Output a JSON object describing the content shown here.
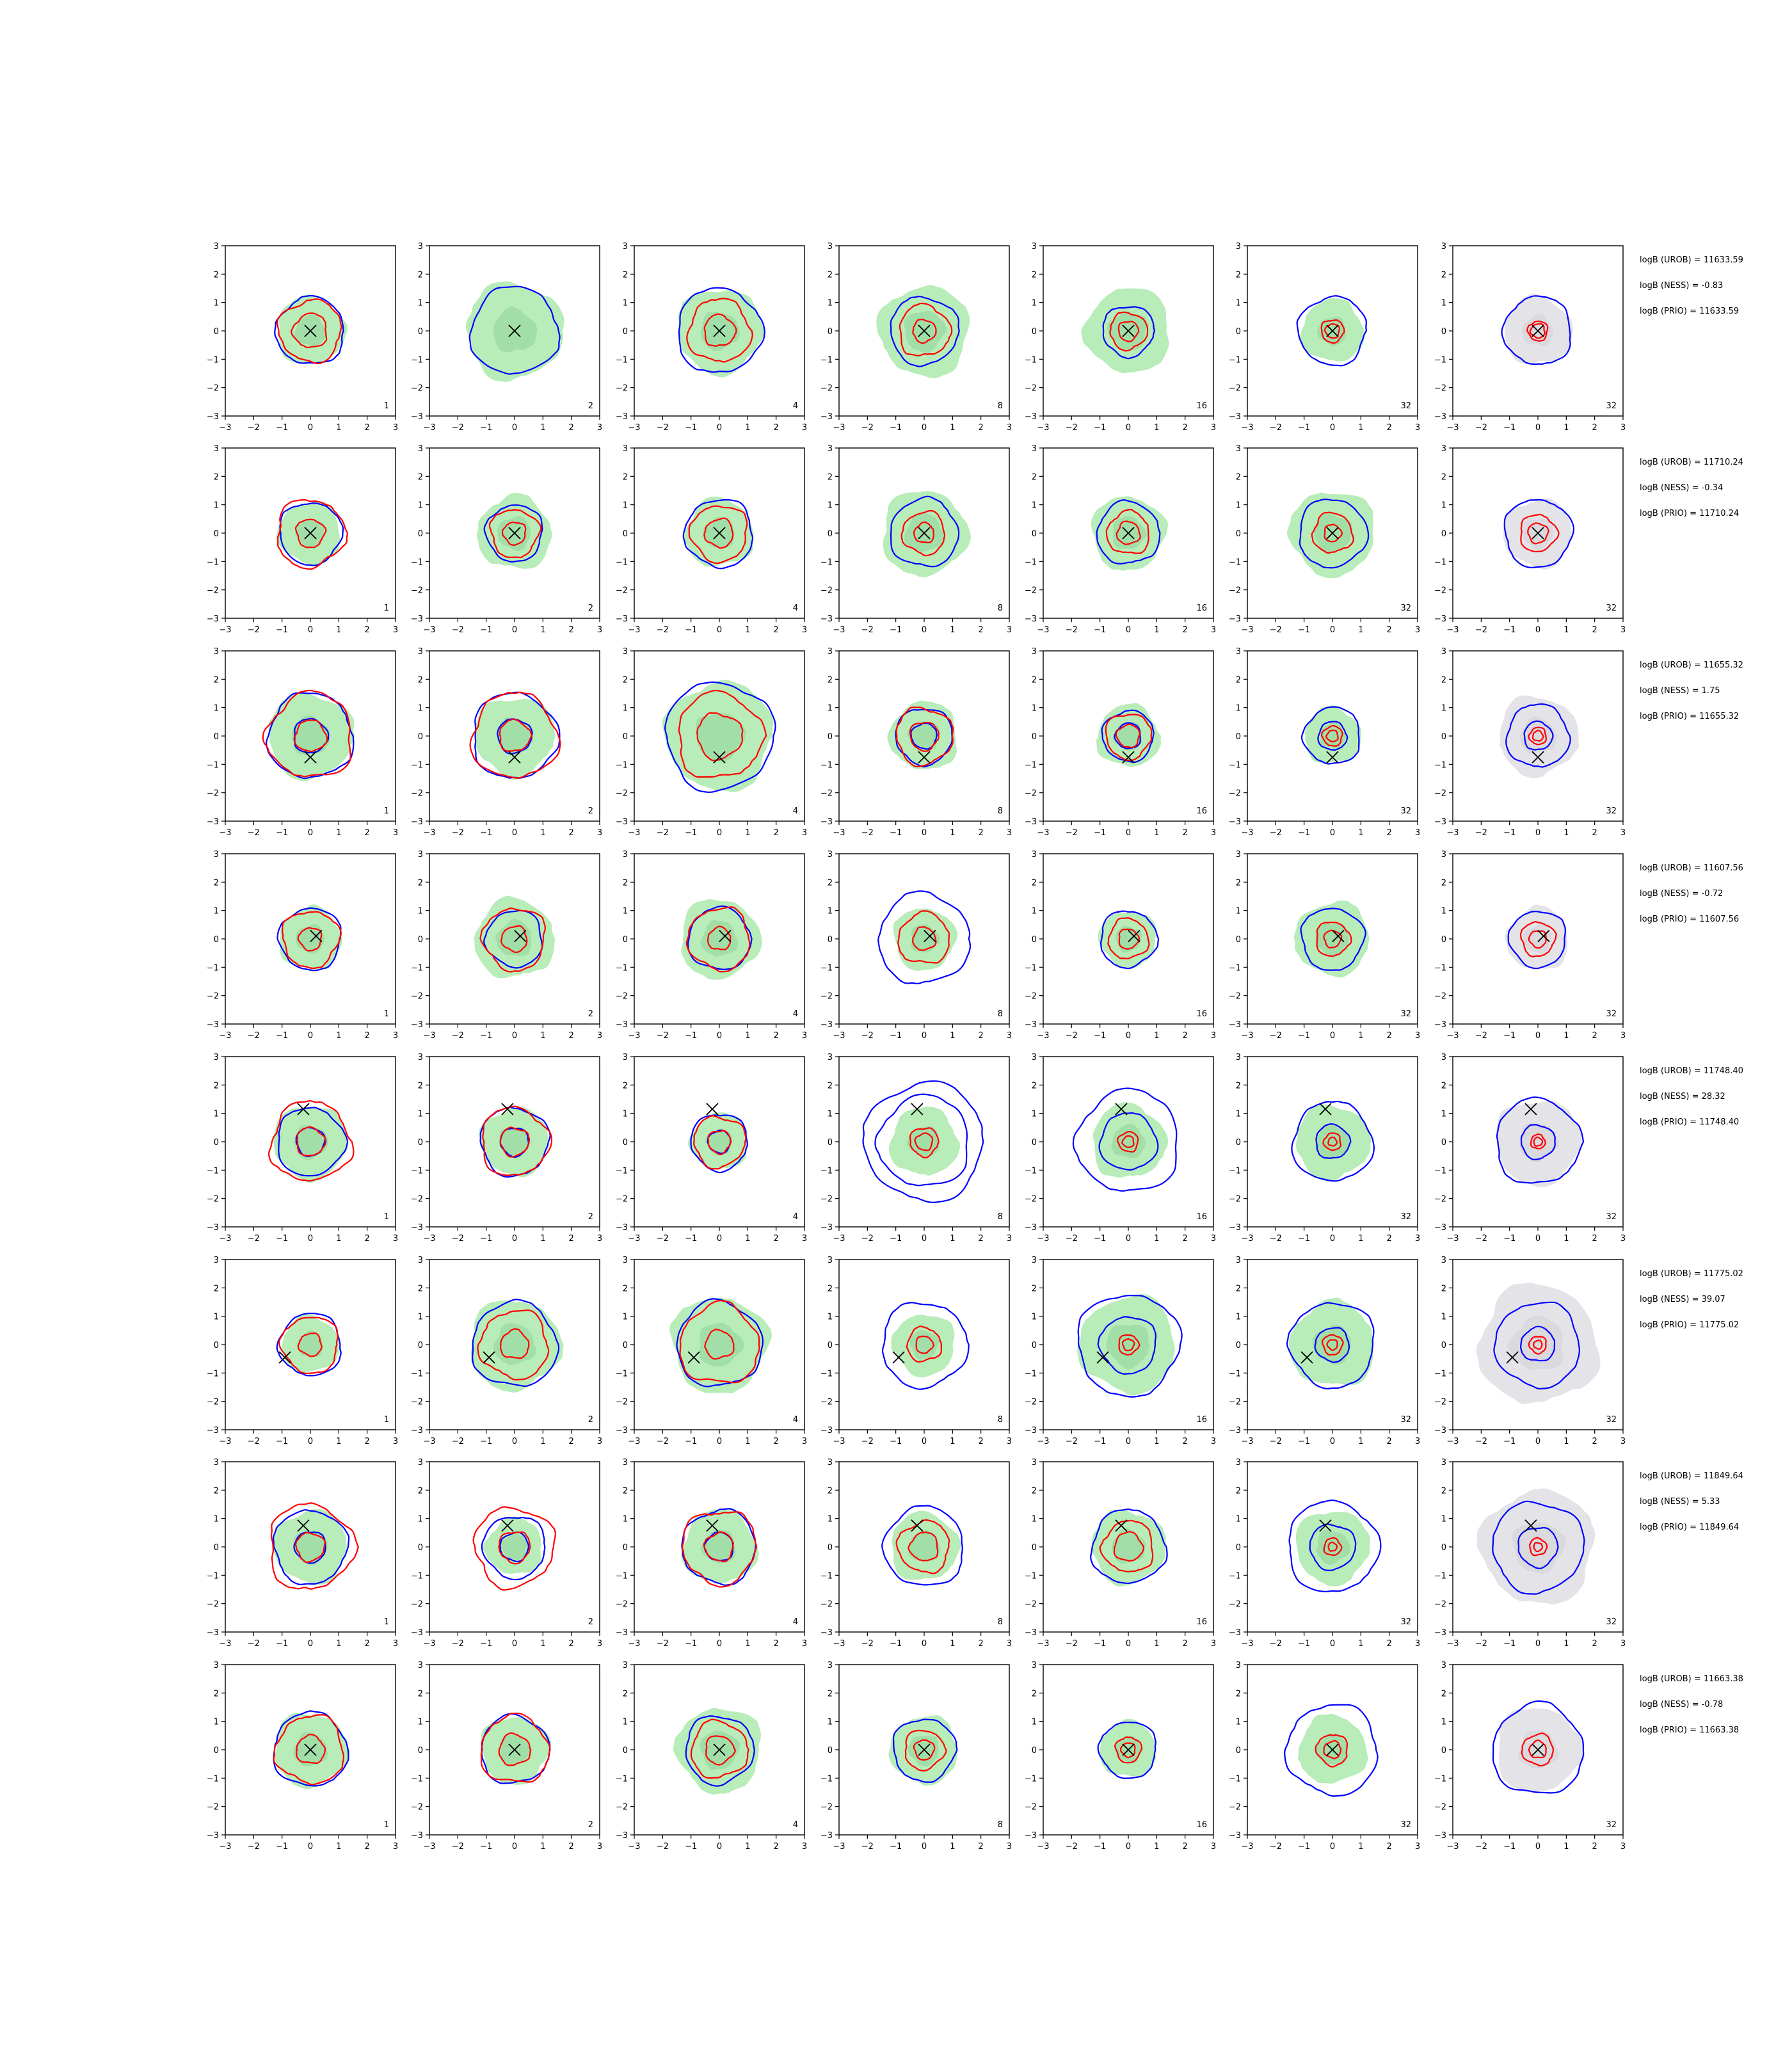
{
  "chart_data": {
    "type": "contour-grid",
    "description_axes": {
      "xlim": [
        -3,
        3
      ],
      "ylim": [
        -3,
        3
      ],
      "xticks": [
        "−3",
        "−2",
        "−1",
        "0",
        "1",
        "2",
        "3"
      ],
      "yticks": [
        "3",
        "2",
        "1",
        "0",
        "−1",
        "−2",
        "−3"
      ]
    },
    "colors": {
      "fill_green": "#b8ecb8",
      "fill_green_dark": "#8fd39a",
      "fill_gray": "#e4e4e8",
      "fill_gray_dark": "#cfcfd6",
      "contour_blue": "#0000ff",
      "contour_red": "#ff0000",
      "marker": "#000000"
    },
    "column_labels": [
      "1",
      "2",
      "4",
      "8",
      "16",
      "32",
      "32"
    ],
    "last_column_fill": "gray",
    "rows": [
      {
        "marker": [
          0.0,
          0.0
        ],
        "stats": [
          "logB (UROB) = 11633.59",
          "logB (NESS) = -0.83",
          "logB (PRIO) = 11633.59"
        ],
        "panels": [
          {
            "fill": 1.2,
            "blue": [
              1.2
            ],
            "red": [
              1.1,
              0.6
            ]
          },
          {
            "fill": 1.7,
            "blue": [
              1.55
            ],
            "red": []
          },
          {
            "fill": 1.5,
            "blue": [
              1.5
            ],
            "red": [
              1.1,
              0.55
            ]
          },
          {
            "fill": 1.6,
            "blue": [
              1.2
            ],
            "red": [
              0.9,
              0.4
            ]
          },
          {
            "fill": 1.5,
            "blue": [
              0.9
            ],
            "red": [
              0.65,
              0.35
            ]
          },
          {
            "fill": 1.1,
            "blue": [
              1.2
            ],
            "red": [
              0.4,
              0.25
            ]
          },
          {
            "fill": 1.2,
            "blue": [
              1.2
            ],
            "red": [
              0.35,
              0.25
            ]
          }
        ]
      },
      {
        "marker": [
          0.0,
          0.0
        ],
        "stats": [
          "logB (UROB) = 11710.24",
          "logB (NESS) = -0.34",
          "logB (PRIO) = 11710.24"
        ],
        "panels": [
          {
            "fill": 1.1,
            "blue": [
              1.1
            ],
            "red": [
              1.2,
              0.5
            ]
          },
          {
            "fill": 1.3,
            "blue": [
              1.0
            ],
            "red": [
              0.85,
              0.4
            ]
          },
          {
            "fill": 1.2,
            "blue": [
              1.2
            ],
            "red": [
              1.0,
              0.5
            ]
          },
          {
            "fill": 1.5,
            "blue": [
              1.2
            ],
            "red": [
              0.75,
              0.35
            ]
          },
          {
            "fill": 1.3,
            "blue": [
              1.1
            ],
            "red": [
              0.75,
              0.4
            ]
          },
          {
            "fill": 1.5,
            "blue": [
              1.2
            ],
            "red": [
              0.7,
              0.3
            ]
          },
          {
            "fill": 1.2,
            "blue": [
              1.2
            ],
            "red": [
              0.65,
              0.35
            ]
          }
        ]
      },
      {
        "marker": [
          0.0,
          -0.75
        ],
        "stats": [
          "logB (UROB) = 11655.32",
          "logB (NESS) = 1.75",
          "logB (PRIO) = 11655.32"
        ],
        "panels": [
          {
            "fill": 1.5,
            "blue": [
              1.5,
              0.6
            ],
            "red": [
              1.5,
              0.55
            ]
          },
          {
            "fill": 1.4,
            "blue": [
              1.5,
              0.6
            ],
            "red": [
              1.5,
              0.55
            ]
          },
          {
            "fill": 1.9,
            "blue": [
              1.9
            ],
            "red": [
              1.5,
              0.8
            ]
          },
          {
            "fill": 1.2,
            "blue": [
              1.0,
              0.45
            ],
            "red": [
              1.0,
              0.5
            ]
          },
          {
            "fill": 1.1,
            "blue": [
              0.9,
              0.45
            ],
            "red": [
              0.8,
              0.4
            ]
          },
          {
            "fill": 1.0,
            "blue": [
              1.0,
              0.5
            ],
            "red": [
              0.35,
              0.2
            ]
          },
          {
            "fill": 1.4,
            "blue": [
              1.1,
              0.5
            ],
            "red": [
              0.3,
              0.18
            ]
          }
        ]
      },
      {
        "marker": [
          0.2,
          0.1
        ],
        "stats": [
          "logB (UROB) = 11607.56",
          "logB (NESS) = -0.72",
          "logB (PRIO) = 11607.56"
        ],
        "panels": [
          {
            "fill": 1.1,
            "blue": [
              1.1
            ],
            "red": [
              1.0,
              0.4
            ]
          },
          {
            "fill": 1.4,
            "blue": [
              1.0
            ],
            "red": [
              1.1,
              0.45
            ]
          },
          {
            "fill": 1.4,
            "blue": [
              1.1
            ],
            "red": [
              1.1,
              0.4
            ]
          },
          {
            "fill": 1.1,
            "blue": [
              1.6
            ],
            "red": [
              0.9,
              0.4
            ]
          },
          {
            "fill": 1.0,
            "blue": [
              1.0
            ],
            "red": [
              0.7,
              0.35
            ]
          },
          {
            "fill": 1.3,
            "blue": [
              1.1
            ],
            "red": [
              0.6,
              0.3
            ]
          },
          {
            "fill": 1.1,
            "blue": [
              1.0
            ],
            "red": [
              0.6,
              0.3
            ]
          }
        ]
      },
      {
        "marker": [
          -0.25,
          1.15
        ],
        "stats": [
          "logB (UROB) = 11748.40",
          "logB (NESS) = 28.32",
          "logB (PRIO) = 11748.40"
        ],
        "panels": [
          {
            "fill": 1.3,
            "blue": [
              1.2,
              0.5
            ],
            "red": [
              1.4,
              0.5
            ]
          },
          {
            "fill": 1.2,
            "blue": [
              1.2,
              0.5
            ],
            "red": [
              1.2,
              0.5
            ]
          },
          {
            "fill": 1.0,
            "blue": [
              1.0,
              0.4
            ],
            "red": [
              0.9,
              0.4
            ]
          },
          {
            "fill": 1.2,
            "blue": [
              2.1,
              1.6
            ],
            "red": [
              0.5,
              0.3
            ]
          },
          {
            "fill": 1.3,
            "blue": [
              1.8,
              1.0
            ],
            "red": [
              0.35,
              0.2
            ]
          },
          {
            "fill": 1.3,
            "blue": [
              1.4,
              0.6
            ],
            "red": [
              0.3,
              0.15
            ]
          },
          {
            "fill": 1.5,
            "blue": [
              1.5,
              0.6
            ],
            "red": [
              0.25,
              0.15
            ]
          }
        ]
      },
      {
        "marker": [
          -0.9,
          -0.45
        ],
        "stats": [
          "logB (UROB) = 11775.02",
          "logB (NESS) = 39.07",
          "logB (PRIO) = 11775.02"
        ],
        "panels": [
          {
            "fill": 1.0,
            "blue": [
              1.1
            ],
            "red": [
              1.0,
              0.4
            ]
          },
          {
            "fill": 1.6,
            "blue": [
              1.5
            ],
            "red": [
              1.2,
              0.5
            ]
          },
          {
            "fill": 1.7,
            "blue": [
              1.5
            ],
            "red": [
              1.4,
              0.5
            ]
          },
          {
            "fill": 1.1,
            "blue": [
              1.5
            ],
            "red": [
              0.6,
              0.3
            ]
          },
          {
            "fill": 1.7,
            "blue": [
              1.8,
              1.0
            ],
            "red": [
              0.35,
              0.2
            ]
          },
          {
            "fill": 1.5,
            "blue": [
              1.5,
              0.6
            ],
            "red": [
              0.35,
              0.18
            ]
          },
          {
            "fill": 2.1,
            "blue": [
              1.5,
              0.6
            ],
            "red": [
              0.3,
              0.15
            ]
          }
        ]
      },
      {
        "marker": [
          -0.25,
          0.75
        ],
        "stats": [
          "logB (UROB) = 11849.64",
          "logB (NESS) = 5.33",
          "logB (PRIO) = 11849.64"
        ],
        "panels": [
          {
            "fill": 1.3,
            "blue": [
              1.3,
              0.55
            ],
            "red": [
              1.5,
              0.5
            ]
          },
          {
            "fill": 1.0,
            "blue": [
              1.1,
              0.5
            ],
            "red": [
              1.4,
              0.55
            ]
          },
          {
            "fill": 1.3,
            "blue": [
              1.3,
              0.5
            ],
            "red": [
              1.3,
              0.5
            ]
          },
          {
            "fill": 1.2,
            "blue": [
              1.4
            ],
            "red": [
              0.9,
              0.5
            ]
          },
          {
            "fill": 1.3,
            "blue": [
              1.3
            ],
            "red": [
              0.9,
              0.5
            ]
          },
          {
            "fill": 1.3,
            "blue": [
              1.6,
              0.8
            ],
            "red": [
              0.3,
              0.15
            ]
          },
          {
            "fill": 2.0,
            "blue": [
              1.6,
              0.7
            ],
            "red": [
              0.3,
              0.15
            ]
          }
        ]
      },
      {
        "marker": [
          0.0,
          0.0
        ],
        "stats": [
          "logB (UROB) = 11663.38",
          "logB (NESS) = -0.78",
          "logB (PRIO) = 11663.38"
        ],
        "panels": [
          {
            "fill": 1.3,
            "blue": [
              1.3
            ],
            "red": [
              1.2,
              0.5
            ]
          },
          {
            "fill": 1.2,
            "blue": [
              1.2
            ],
            "red": [
              1.2,
              0.55
            ]
          },
          {
            "fill": 1.5,
            "blue": [
              1.2
            ],
            "red": [
              1.0,
              0.5
            ]
          },
          {
            "fill": 1.2,
            "blue": [
              1.1
            ],
            "red": [
              0.7,
              0.35
            ]
          },
          {
            "fill": 1.0,
            "blue": [
              1.0
            ],
            "red": [
              0.45,
              0.25
            ]
          },
          {
            "fill": 1.2,
            "blue": [
              1.6
            ],
            "red": [
              0.55,
              0.3
            ]
          },
          {
            "fill": 1.5,
            "blue": [
              1.6
            ],
            "red": [
              0.55,
              0.3
            ]
          }
        ]
      }
    ]
  }
}
